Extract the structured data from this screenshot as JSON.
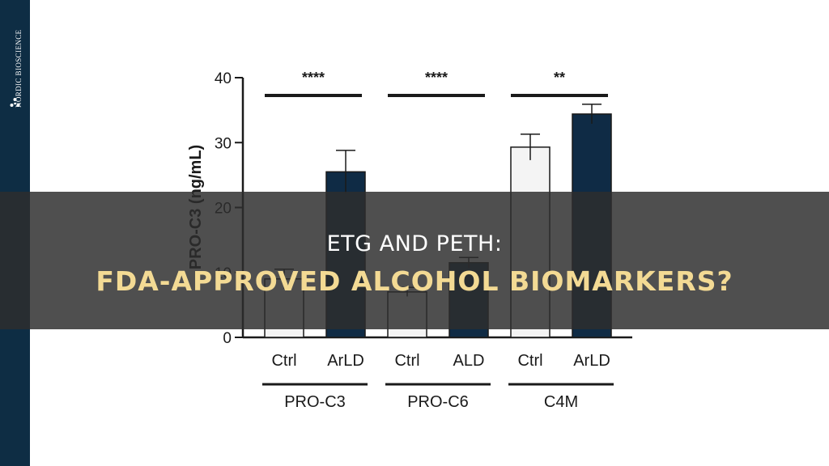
{
  "brand": {
    "name": "NORDIC BIOSCIENCE",
    "icon": "nordic-bioscience-logo-icon"
  },
  "banner": {
    "line1": "ETG AND PETH:",
    "line2": "FDA-APPROVED ALCOHOL BIOMARKERS?"
  },
  "colors": {
    "sidebar": "#0e2d44",
    "ctrl_bar": "#f4f4f4",
    "case_bar": "#0f2b45",
    "accent": "#f3da94"
  },
  "chart_data": {
    "type": "bar",
    "ylabel": "PRO-C3 (ng/mL)",
    "ylim": [
      0,
      40
    ],
    "yticks": [
      0,
      10,
      20,
      30,
      40
    ],
    "grid": false,
    "groups": [
      {
        "name": "PRO-C3",
        "significance": "****",
        "bars": [
          {
            "category": "Ctrl",
            "value": 9,
            "error": 1.5,
            "color": "#f4f4f4"
          },
          {
            "category": "ArLD",
            "value": 25.5,
            "error": 3.3,
            "color": "#0f2b45"
          }
        ]
      },
      {
        "name": "PRO-C6",
        "significance": "****",
        "bars": [
          {
            "category": "Ctrl",
            "value": 7,
            "error": 0.7,
            "color": "#f4f4f4"
          },
          {
            "category": "ALD",
            "value": 11.5,
            "error": 0.8,
            "color": "#0f2b45"
          }
        ]
      },
      {
        "name": "C4M",
        "significance": "**",
        "bars": [
          {
            "category": "Ctrl",
            "value": 29.3,
            "error": 2.0,
            "color": "#f4f4f4"
          },
          {
            "category": "ArLD",
            "value": 34.4,
            "error": 1.5,
            "color": "#0f2b45"
          }
        ]
      }
    ]
  }
}
